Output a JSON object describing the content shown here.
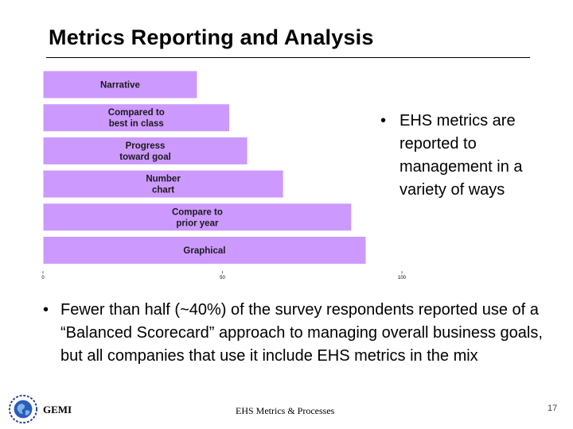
{
  "title": "Metrics Reporting and Analysis",
  "chart_data": {
    "type": "bar",
    "orientation": "horizontal",
    "categories": [
      "Narrative",
      "Compared to best in class",
      "Progress toward goal",
      "Number chart",
      "Compare to prior year",
      "Graphical"
    ],
    "category_lines": [
      [
        "Narrative"
      ],
      [
        "Compared to",
        "best in class"
      ],
      [
        "Progress",
        "toward goal"
      ],
      [
        "Number",
        "chart"
      ],
      [
        "Compare to",
        "prior year"
      ],
      [
        "Graphical"
      ]
    ],
    "values": [
      43,
      52,
      57,
      67,
      86,
      90
    ],
    "xlim": [
      0,
      100
    ],
    "xticks": [
      0,
      50,
      100
    ],
    "grid": false,
    "bar_color": "#cc99ff",
    "bar_edge_color": "#ffffff"
  },
  "bullets": {
    "right": {
      "symbol": "•",
      "text": "EHS metrics are reported to management in a variety of ways"
    },
    "bottom": {
      "symbol": "•",
      "text": "Fewer than half (~40%) of the survey respondents reported use of a “Balanced Scorecard” approach to managing overall business goals, but all companies that use it include EHS metrics in the mix"
    }
  },
  "footer": {
    "logo_icon": "globe-logo-icon",
    "logo_text": "GEMI",
    "center_text": "EHS Metrics & Processes",
    "page_number": "17"
  }
}
